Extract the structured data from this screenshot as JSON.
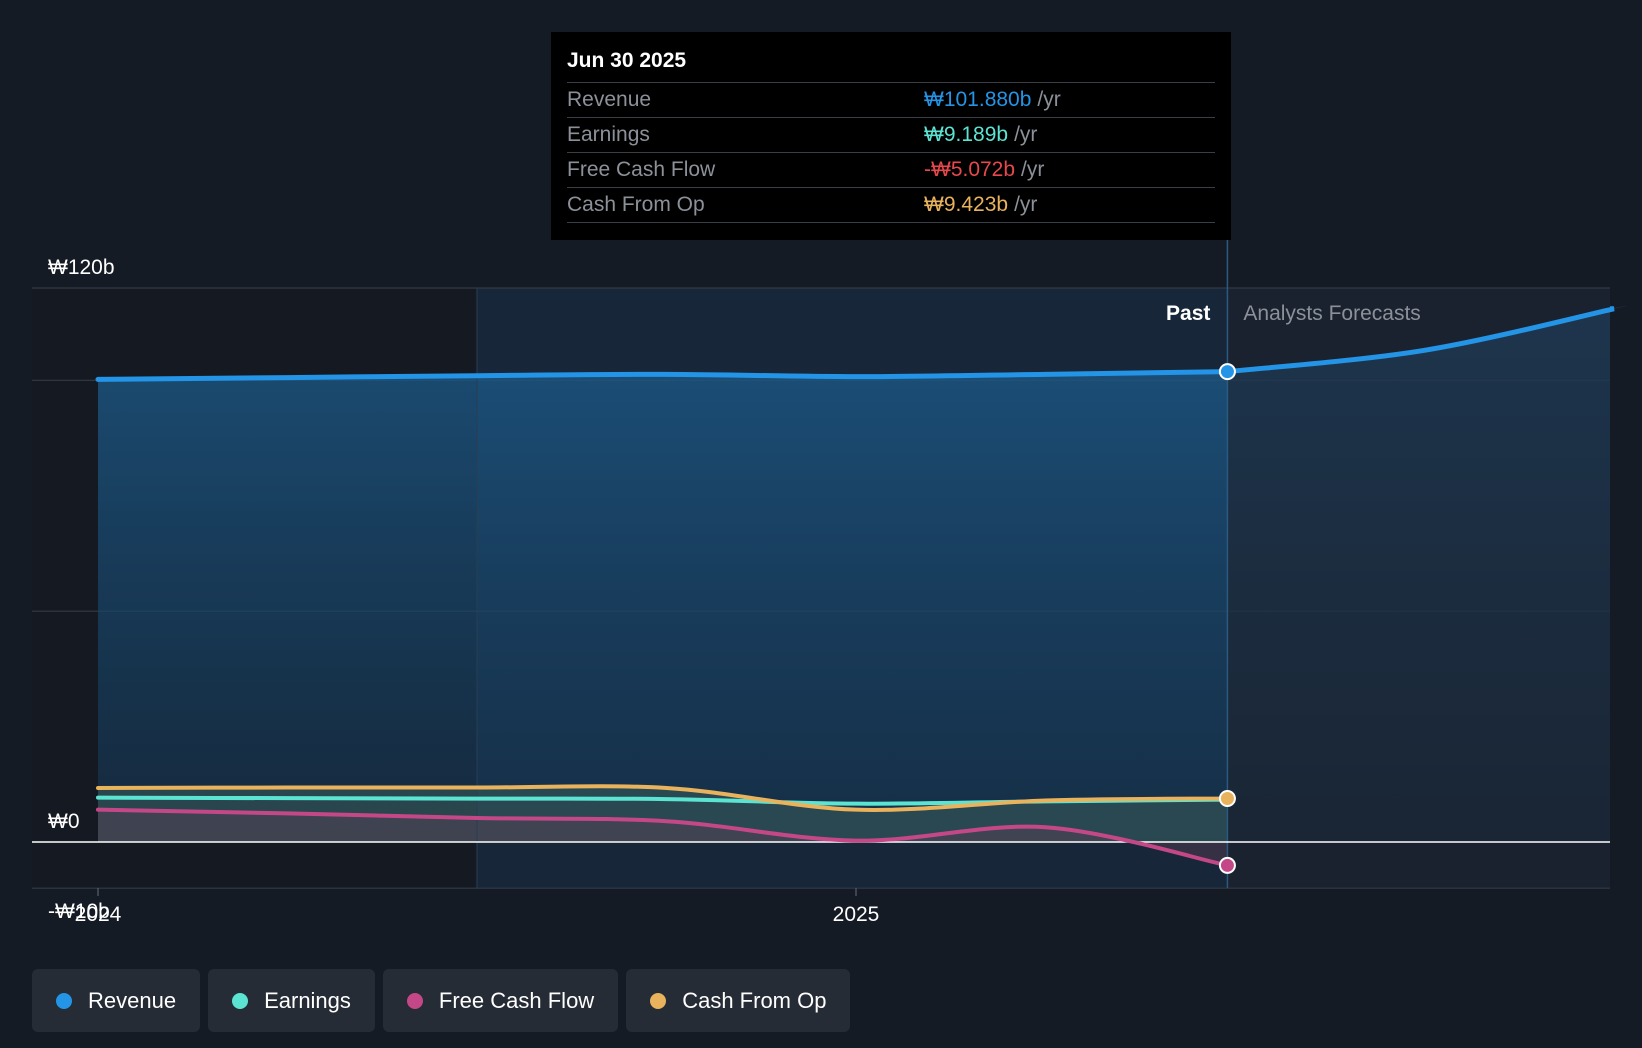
{
  "tooltip": {
    "date": "Jun 30 2025",
    "rows": [
      {
        "label": "Revenue",
        "value": "₩101.880b",
        "unit": "/yr",
        "color": "#2394e6"
      },
      {
        "label": "Earnings",
        "value": "₩9.189b",
        "unit": "/yr",
        "color": "#5ce4d2"
      },
      {
        "label": "Free Cash Flow",
        "value": "-₩5.072b",
        "unit": "/yr",
        "color": "#e5484d"
      },
      {
        "label": "Cash From Op",
        "value": "₩9.423b",
        "unit": "/yr",
        "color": "#e9b25c"
      }
    ]
  },
  "legend": [
    {
      "label": "Revenue",
      "color": "#2394e6"
    },
    {
      "label": "Earnings",
      "color": "#5ce4d2"
    },
    {
      "label": "Free Cash Flow",
      "color": "#c44887"
    },
    {
      "label": "Cash From Op",
      "color": "#e9b25c"
    }
  ],
  "chart_data": {
    "type": "line",
    "title": "",
    "xlabel": "",
    "ylabel": "",
    "x_ticks": [
      {
        "label": "2024",
        "x": 2024.0
      },
      {
        "label": "2025",
        "x": 2025.0
      }
    ],
    "y_ticks": [
      {
        "label": "₩120b",
        "value": 120
      },
      {
        "label": "₩0",
        "value": 0
      },
      {
        "label": "-₩10b",
        "value": -10
      }
    ],
    "ylim": [
      -10,
      120
    ],
    "xlim": [
      2023.91,
      2026.0
    ],
    "grid_values": [
      120,
      100,
      50,
      0,
      -10
    ],
    "past_label": "Past",
    "forecast_label": "Analysts Forecasts",
    "past_end_x": 2025.49,
    "highlight_start_x": 2024.5,
    "series": [
      {
        "name": "Revenue",
        "color": "#2394e6",
        "x": [
          2024.0,
          2024.25,
          2024.5,
          2024.75,
          2025.0,
          2025.25,
          2025.49
        ],
        "values": [
          100.2,
          100.6,
          101.0,
          101.3,
          100.8,
          101.3,
          101.88
        ],
        "forecast_x": [
          2025.49,
          2025.75,
          2026.0
        ],
        "forecast_values": [
          101.88,
          106.5,
          115.5
        ]
      },
      {
        "name": "Earnings",
        "color": "#5ce4d2",
        "x": [
          2024.0,
          2024.25,
          2024.5,
          2024.75,
          2025.0,
          2025.25,
          2025.49
        ],
        "values": [
          9.6,
          9.5,
          9.4,
          9.3,
          8.3,
          8.8,
          9.189
        ]
      },
      {
        "name": "Free Cash Flow",
        "color": "#c44887",
        "x": [
          2024.0,
          2024.25,
          2024.5,
          2024.75,
          2025.0,
          2025.25,
          2025.49
        ],
        "values": [
          7.0,
          6.2,
          5.2,
          4.5,
          0.3,
          3.2,
          -5.072
        ]
      },
      {
        "name": "Cash From Op",
        "color": "#e9b25c",
        "x": [
          2024.0,
          2024.25,
          2024.5,
          2024.75,
          2025.0,
          2025.25,
          2025.49
        ],
        "values": [
          11.7,
          11.8,
          11.8,
          11.7,
          7.0,
          9.0,
          9.423
        ]
      }
    ]
  }
}
